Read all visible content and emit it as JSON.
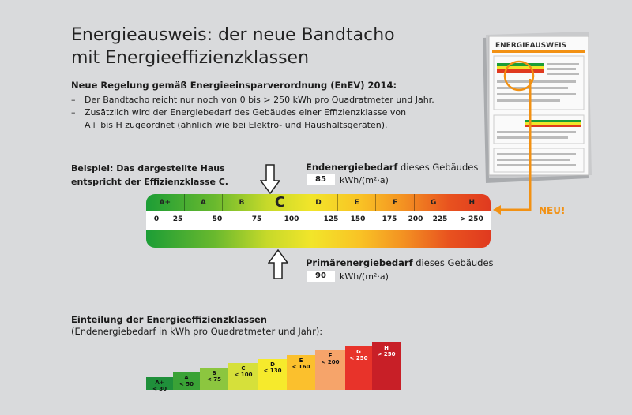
{
  "title": {
    "line1": "Energieausweis: der neue Bandtacho",
    "line2": "mit Energieeffizienzklassen"
  },
  "regulation": {
    "heading": "Neue Regelung gemäß Energieeinsparverordnung (EnEV) 2014:",
    "bullet1": "Der Bandtacho reicht nur noch von 0 bis  > 250 kWh pro Quadratmeter und Jahr.",
    "bullet2_line1": "Zusätzlich wird der Energiebedarf des Gebäudes einer Effizienzklasse von",
    "bullet2_line2": "A+ bis H zugeordnet (ähnlich wie bei Elektro- und Haushaltsgeräten).",
    "dash": "–"
  },
  "example": {
    "line1": "Beispiel: Das dargestellte Haus",
    "line2": "entspricht der Effizienzklasse C."
  },
  "endenergie": {
    "label_bold": "Endenergiebedarf",
    "label_rest": " dieses Gebäudes",
    "value": "85",
    "unit": "kWh/(m²·a)"
  },
  "primaerenergie": {
    "label_bold": "Primärenergiebedarf",
    "label_rest": " dieses Gebäudes",
    "value": "90",
    "unit": "kWh/(m²·a)"
  },
  "tacho": {
    "classes": [
      "A+",
      "A",
      "B",
      "C",
      "D",
      "E",
      "F",
      "G",
      "H"
    ],
    "selected": "C",
    "scale": [
      "0",
      "25",
      "50",
      "75",
      "100",
      "125",
      "150",
      "175",
      "200",
      "225",
      "> 250"
    ]
  },
  "document": {
    "title": "ENERGIEAUSWEIS"
  },
  "neu_label": "NEU!",
  "classification": {
    "heading": "Einteilung der Energieeffizienzklassen",
    "subheading": "(Endenergiebedarf in kWh pro Quadratmeter  und Jahr):",
    "bars": [
      {
        "cls": "A+",
        "limit": "< 30",
        "color": "#1f8f3a"
      },
      {
        "cls": "A",
        "limit": "< 50",
        "color": "#3aa236"
      },
      {
        "cls": "B",
        "limit": "< 75",
        "color": "#8cc63f"
      },
      {
        "cls": "C",
        "limit": "< 100",
        "color": "#d6e03a"
      },
      {
        "cls": "D",
        "limit": "< 130",
        "color": "#f6ea2c"
      },
      {
        "cls": "E",
        "limit": "< 160",
        "color": "#fbc02d"
      },
      {
        "cls": "F",
        "limit": "< 200",
        "color": "#f6a46a"
      },
      {
        "cls": "G",
        "limit": "< 250",
        "color": "#e8332a"
      },
      {
        "cls": "H",
        "limit": "> 250",
        "color": "#c81f27"
      }
    ]
  },
  "colors": {
    "accent_orange": "#f29113"
  }
}
